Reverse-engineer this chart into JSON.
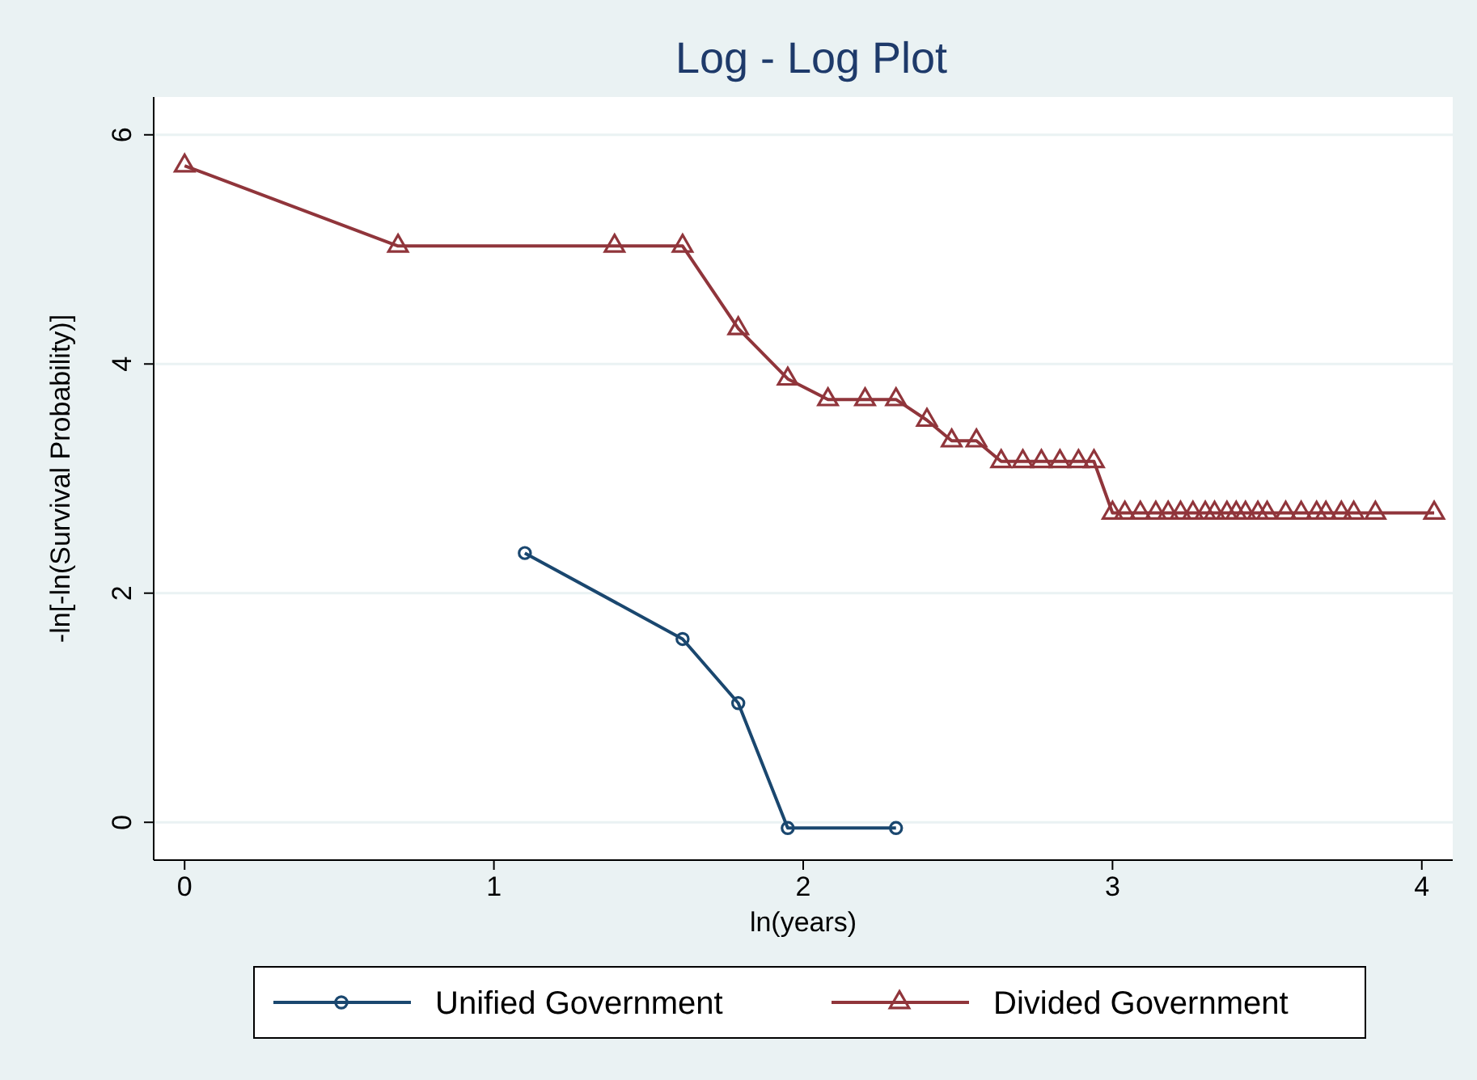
{
  "chart_data": {
    "type": "line",
    "title": "Log - Log Plot",
    "xlabel": "ln(years)",
    "ylabel": "-ln[-ln(Survival Probability)]",
    "xlim": [
      -0.1,
      4.1
    ],
    "xticks": [
      0,
      1,
      2,
      3,
      4
    ],
    "ylim": [
      -0.33,
      6.33
    ],
    "yticks": [
      0,
      2,
      4,
      6
    ],
    "grid": "y",
    "legend": "bottom",
    "series": [
      {
        "name": "Unified Government",
        "color": "#1a476f",
        "marker": "circle",
        "x": [
          1.1,
          1.61,
          1.79,
          1.95,
          2.3
        ],
        "values": [
          2.35,
          1.6,
          1.04,
          -0.05,
          -0.05
        ]
      },
      {
        "name": "Divided Government",
        "color": "#90353b",
        "marker": "triangle",
        "x": [
          0,
          0.69,
          1.39,
          1.61,
          1.79,
          1.95,
          2.08,
          2.2,
          2.3,
          2.4,
          2.48,
          2.56,
          2.64,
          2.71,
          2.77,
          2.83,
          2.89,
          2.94,
          3.0,
          3.04,
          3.09,
          3.14,
          3.18,
          3.22,
          3.26,
          3.3,
          3.33,
          3.37,
          3.4,
          3.43,
          3.47,
          3.5,
          3.56,
          3.61,
          3.66,
          3.69,
          3.74,
          3.78,
          3.85,
          4.04
        ],
        "values": [
          5.73,
          5.03,
          5.03,
          5.03,
          4.31,
          3.87,
          3.69,
          3.69,
          3.69,
          3.51,
          3.33,
          3.33,
          3.15,
          3.15,
          3.15,
          3.15,
          3.15,
          3.15,
          2.7,
          2.7,
          2.7,
          2.7,
          2.7,
          2.7,
          2.7,
          2.7,
          2.7,
          2.7,
          2.7,
          2.7,
          2.7,
          2.7,
          2.7,
          2.7,
          2.7,
          2.7,
          2.7,
          2.7,
          2.7,
          2.7
        ]
      }
    ]
  }
}
